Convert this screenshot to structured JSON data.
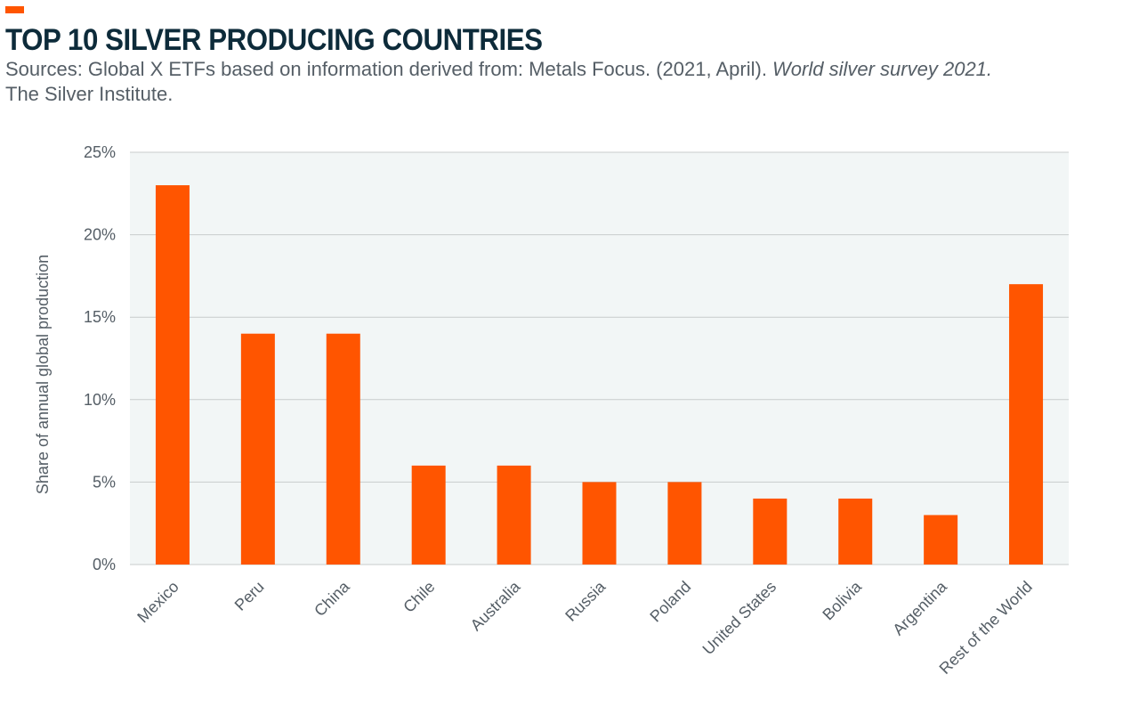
{
  "header": {
    "title": "TOP 10 SILVER PRODUCING COUNTRIES",
    "subtitle_plain": "Sources: Global X ETFs based on information derived from: Metals Focus. (2021, April). ",
    "subtitle_italic": "World silver survey 2021.",
    "subtitle_line2": "The Silver Institute."
  },
  "colors": {
    "accent": "#ff5500",
    "bar": "#ff5500",
    "plot_background": "#f2f6f6",
    "gridline": "#c8cccc",
    "title": "#0d2b3a",
    "text": "#555e66"
  },
  "chart_data": {
    "type": "bar",
    "categories": [
      "Mexico",
      "Peru",
      "China",
      "Chile",
      "Australia",
      "Russia",
      "Poland",
      "United States",
      "Bolivia",
      "Argentina",
      "Rest of the World"
    ],
    "values": [
      23,
      14,
      14,
      6,
      6,
      5,
      5,
      4,
      4,
      3,
      17
    ],
    "ylabel": "Share of annual global production",
    "xlabel": "",
    "ylim": [
      0,
      25
    ],
    "yticks": [
      0,
      5,
      10,
      15,
      20,
      25
    ],
    "ytick_labels": [
      "0%",
      "5%",
      "10%",
      "15%",
      "20%",
      "25%"
    ],
    "grid": true,
    "legend": false
  }
}
